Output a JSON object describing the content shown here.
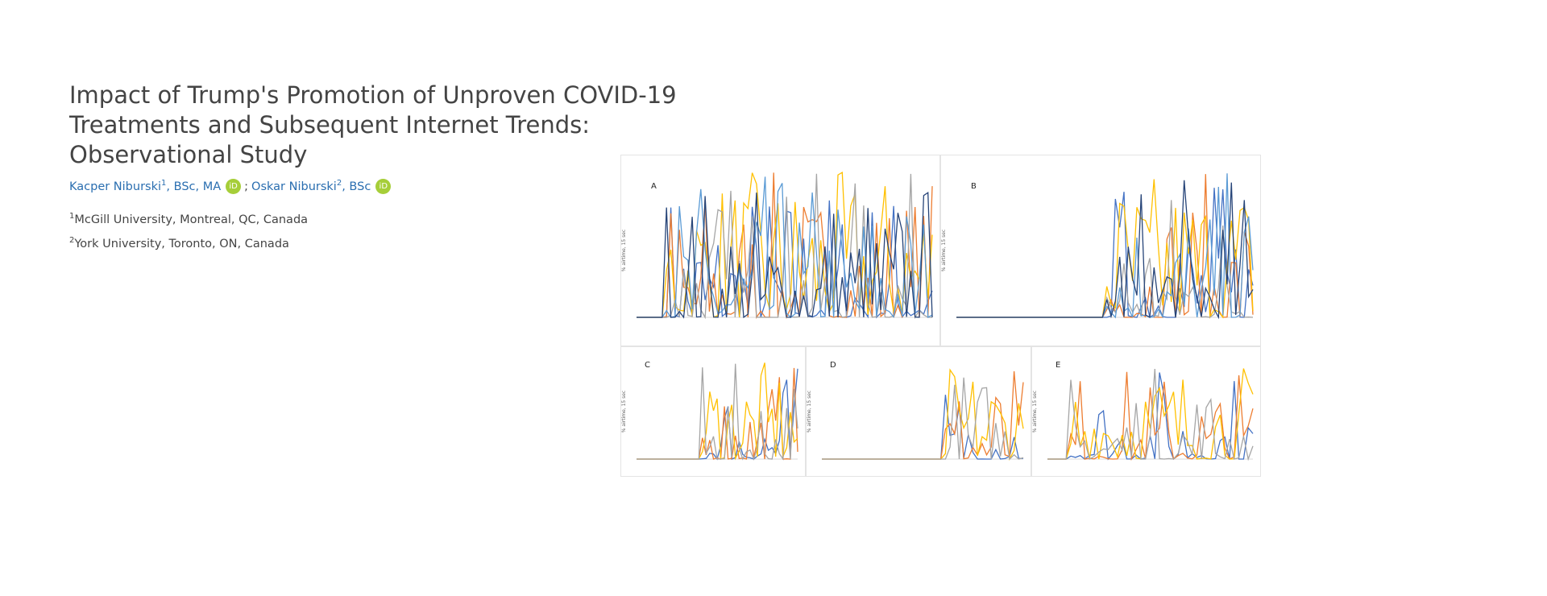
{
  "header": {
    "title": "Impact of Trump's Promotion of Unproven COVID-19 Treatments and Subsequent Internet Trends: Observational Study"
  },
  "authors": [
    {
      "name": "Kacper Niburski",
      "sup": "1",
      "degrees": ", BSc, MA",
      "orcid": "iD"
    },
    {
      "name": "Oskar Niburski",
      "sup": "2",
      "degrees": ", BSc",
      "orcid": "iD"
    }
  ],
  "separator": ";",
  "affiliations": [
    {
      "sup": "1",
      "text": "McGill University, Montreal, QC, Canada"
    },
    {
      "sup": "2",
      "text": "York University, Toronto, ON, Canada"
    }
  ],
  "figure": {
    "panels": [
      {
        "label": "A",
        "y_axis_label": "% airtime, 15 sec"
      },
      {
        "label": "B",
        "y_axis_label": "% airtime, 15 sec"
      },
      {
        "label": "C",
        "y_axis_label": "% airtime, 15 sec"
      },
      {
        "label": "D",
        "y_axis_label": "% airtime, 15 sec"
      },
      {
        "label": "E",
        "y_axis_label": "% airtime, 15 sec"
      }
    ]
  }
}
